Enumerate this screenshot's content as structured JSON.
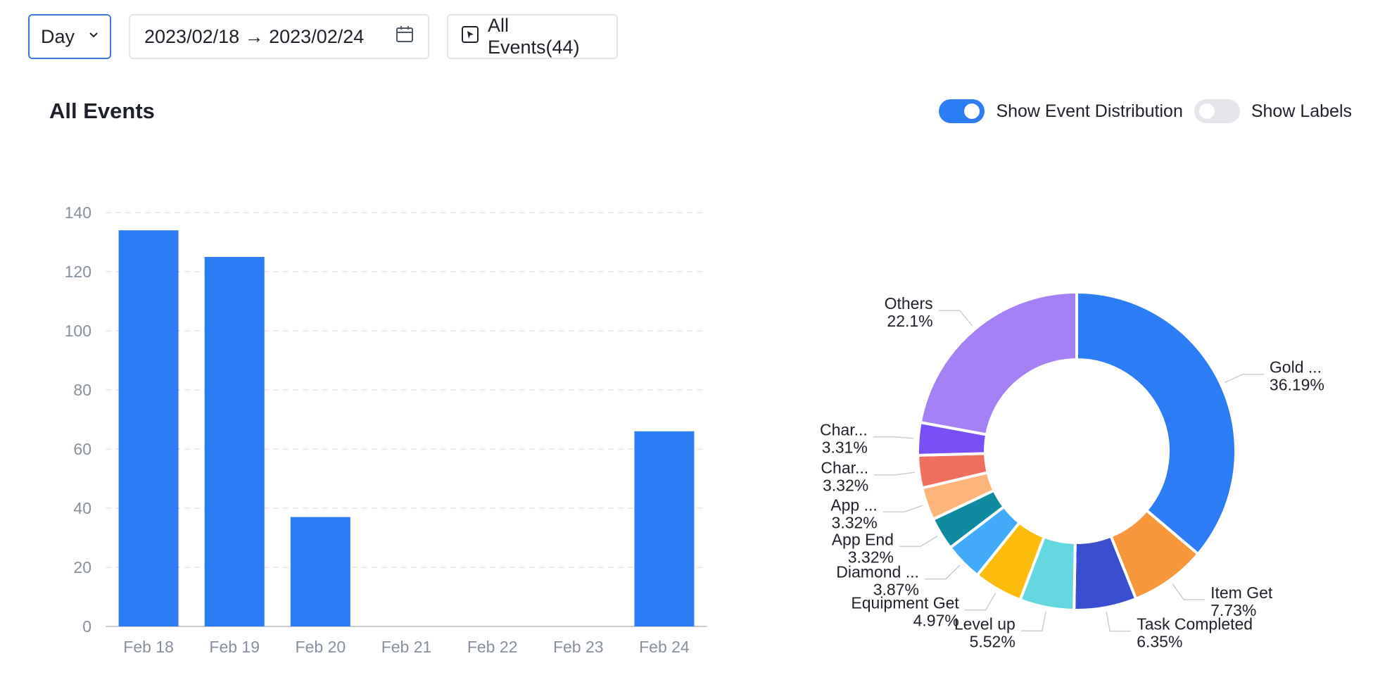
{
  "toolbar": {
    "granularity": "Day",
    "date_range": "2023/02/18 → 2023/02/24",
    "events_filter": "All Events(44)"
  },
  "title": "All Events",
  "toggles": {
    "distribution": {
      "label": "Show Event Distribution",
      "on": true
    },
    "labels": {
      "label": "Show Labels",
      "on": false
    }
  },
  "colors": {
    "primary": "#2c7cf6",
    "axis": "#86909c",
    "grid": "#e5e6eb"
  },
  "icons": {
    "dropdown": "chevron-down-icon",
    "calendar": "calendar-icon",
    "events": "cursor-box-icon"
  },
  "chart_data": [
    {
      "type": "bar",
      "categories": [
        "Feb 18",
        "Feb 19",
        "Feb 20",
        "Feb 21",
        "Feb 22",
        "Feb 23",
        "Feb 24"
      ],
      "values": [
        134,
        125,
        37,
        0,
        0,
        0,
        66
      ],
      "ylim": [
        0,
        140
      ],
      "yticks": [
        0,
        20,
        40,
        60,
        80,
        100,
        120,
        140
      ],
      "grid": true
    },
    {
      "type": "pie",
      "donut": true,
      "slices": [
        {
          "label": "Gold ...",
          "percent": "36.19%",
          "value": 36.19,
          "color": "#2c7cf6"
        },
        {
          "label": "Item Get",
          "percent": "7.73%",
          "value": 7.73,
          "color": "#f7963b"
        },
        {
          "label": "Task Completed",
          "percent": "6.35%",
          "value": 6.35,
          "color": "#3a4fd0"
        },
        {
          "label": "Level up",
          "percent": "5.52%",
          "value": 5.52,
          "color": "#65d7e0"
        },
        {
          "label": "Equipment Get",
          "percent": "4.97%",
          "value": 4.97,
          "color": "#fdbc0c"
        },
        {
          "label": "Diamond ...",
          "percent": "3.87%",
          "value": 3.87,
          "color": "#42acfa"
        },
        {
          "label": "App End",
          "percent": "3.32%",
          "value": 3.32,
          "color": "#108a9e"
        },
        {
          "label": "App ...",
          "percent": "3.32%",
          "value": 3.32,
          "color": "#fdb57a"
        },
        {
          "label": "Char...",
          "percent": "3.32%",
          "value": 3.32,
          "color": "#f06e5c"
        },
        {
          "label": "Char...",
          "percent": "3.31%",
          "value": 3.31,
          "color": "#7950f7"
        },
        {
          "label": "Others",
          "percent": "22.1%",
          "value": 22.1,
          "color": "#a57ff4"
        }
      ]
    }
  ]
}
